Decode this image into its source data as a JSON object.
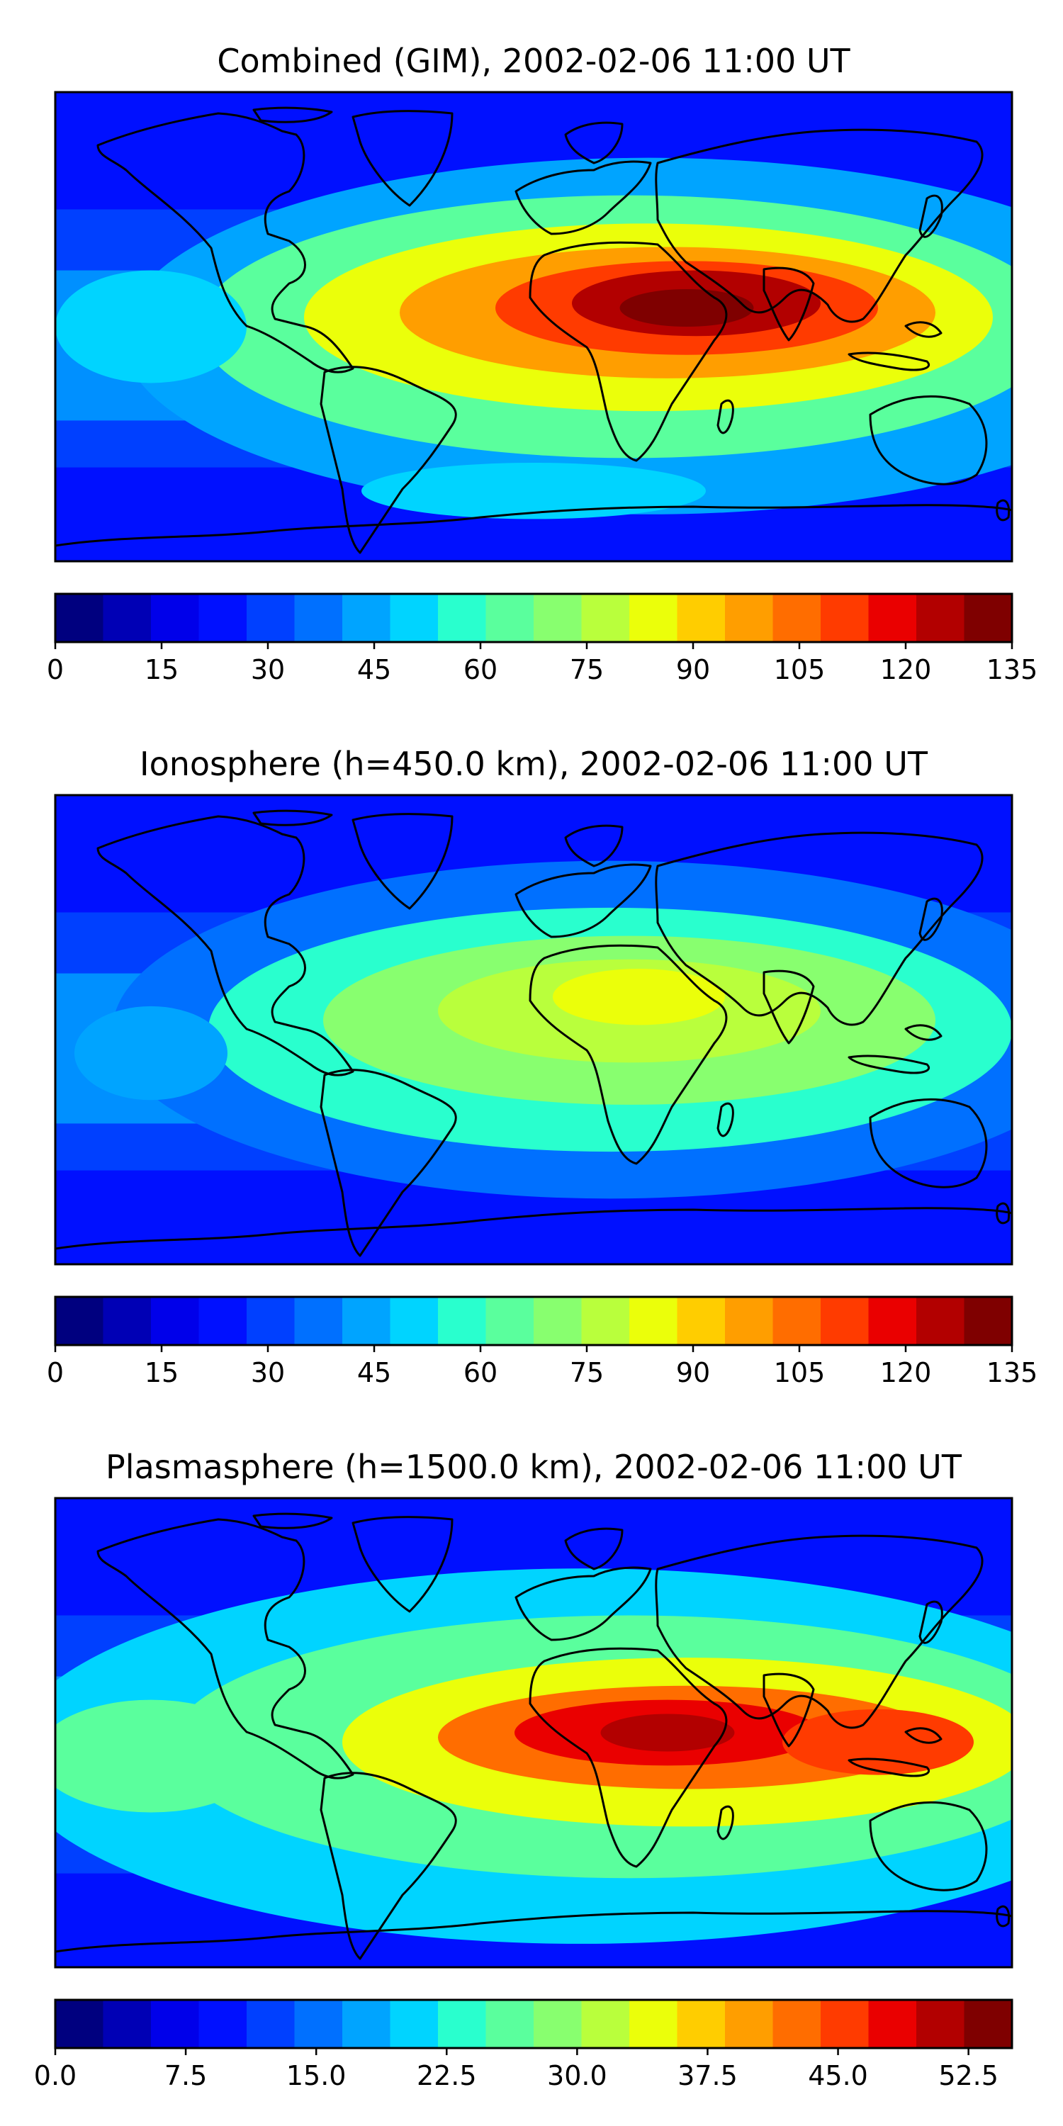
{
  "panels": [
    {
      "title": "Combined (GIM), 2002-02-06 11:00 UT",
      "colorbar_ticks": [
        "0",
        "15",
        "30",
        "45",
        "60",
        "75",
        "90",
        "105",
        "120",
        "135"
      ]
    },
    {
      "title": "Ionosphere  (h=450.0 km), 2002-02-06 11:00 UT",
      "colorbar_ticks": [
        "0",
        "15",
        "30",
        "45",
        "60",
        "75",
        "90",
        "105",
        "120",
        "135"
      ]
    },
    {
      "title": "Plasmasphere (h=1500.0 km), 2002-02-06 11:00 UT",
      "colorbar_ticks": [
        "0.0",
        "7.5",
        "15.0",
        "22.5",
        "30.0",
        "37.5",
        "45.0",
        "52.5"
      ]
    }
  ],
  "colors": {
    "jet": [
      "#00007f",
      "#0000b5",
      "#0000ea",
      "#0010ff",
      "#0040ff",
      "#0070ff",
      "#00a4ff",
      "#00d4ff",
      "#29ffce",
      "#5aff9d",
      "#88ff6f",
      "#b9ff3c",
      "#ebff0a",
      "#ffcd00",
      "#ff9e00",
      "#ff6d00",
      "#ff3b00",
      "#ea0000",
      "#b20000",
      "#7f0000"
    ]
  }
}
